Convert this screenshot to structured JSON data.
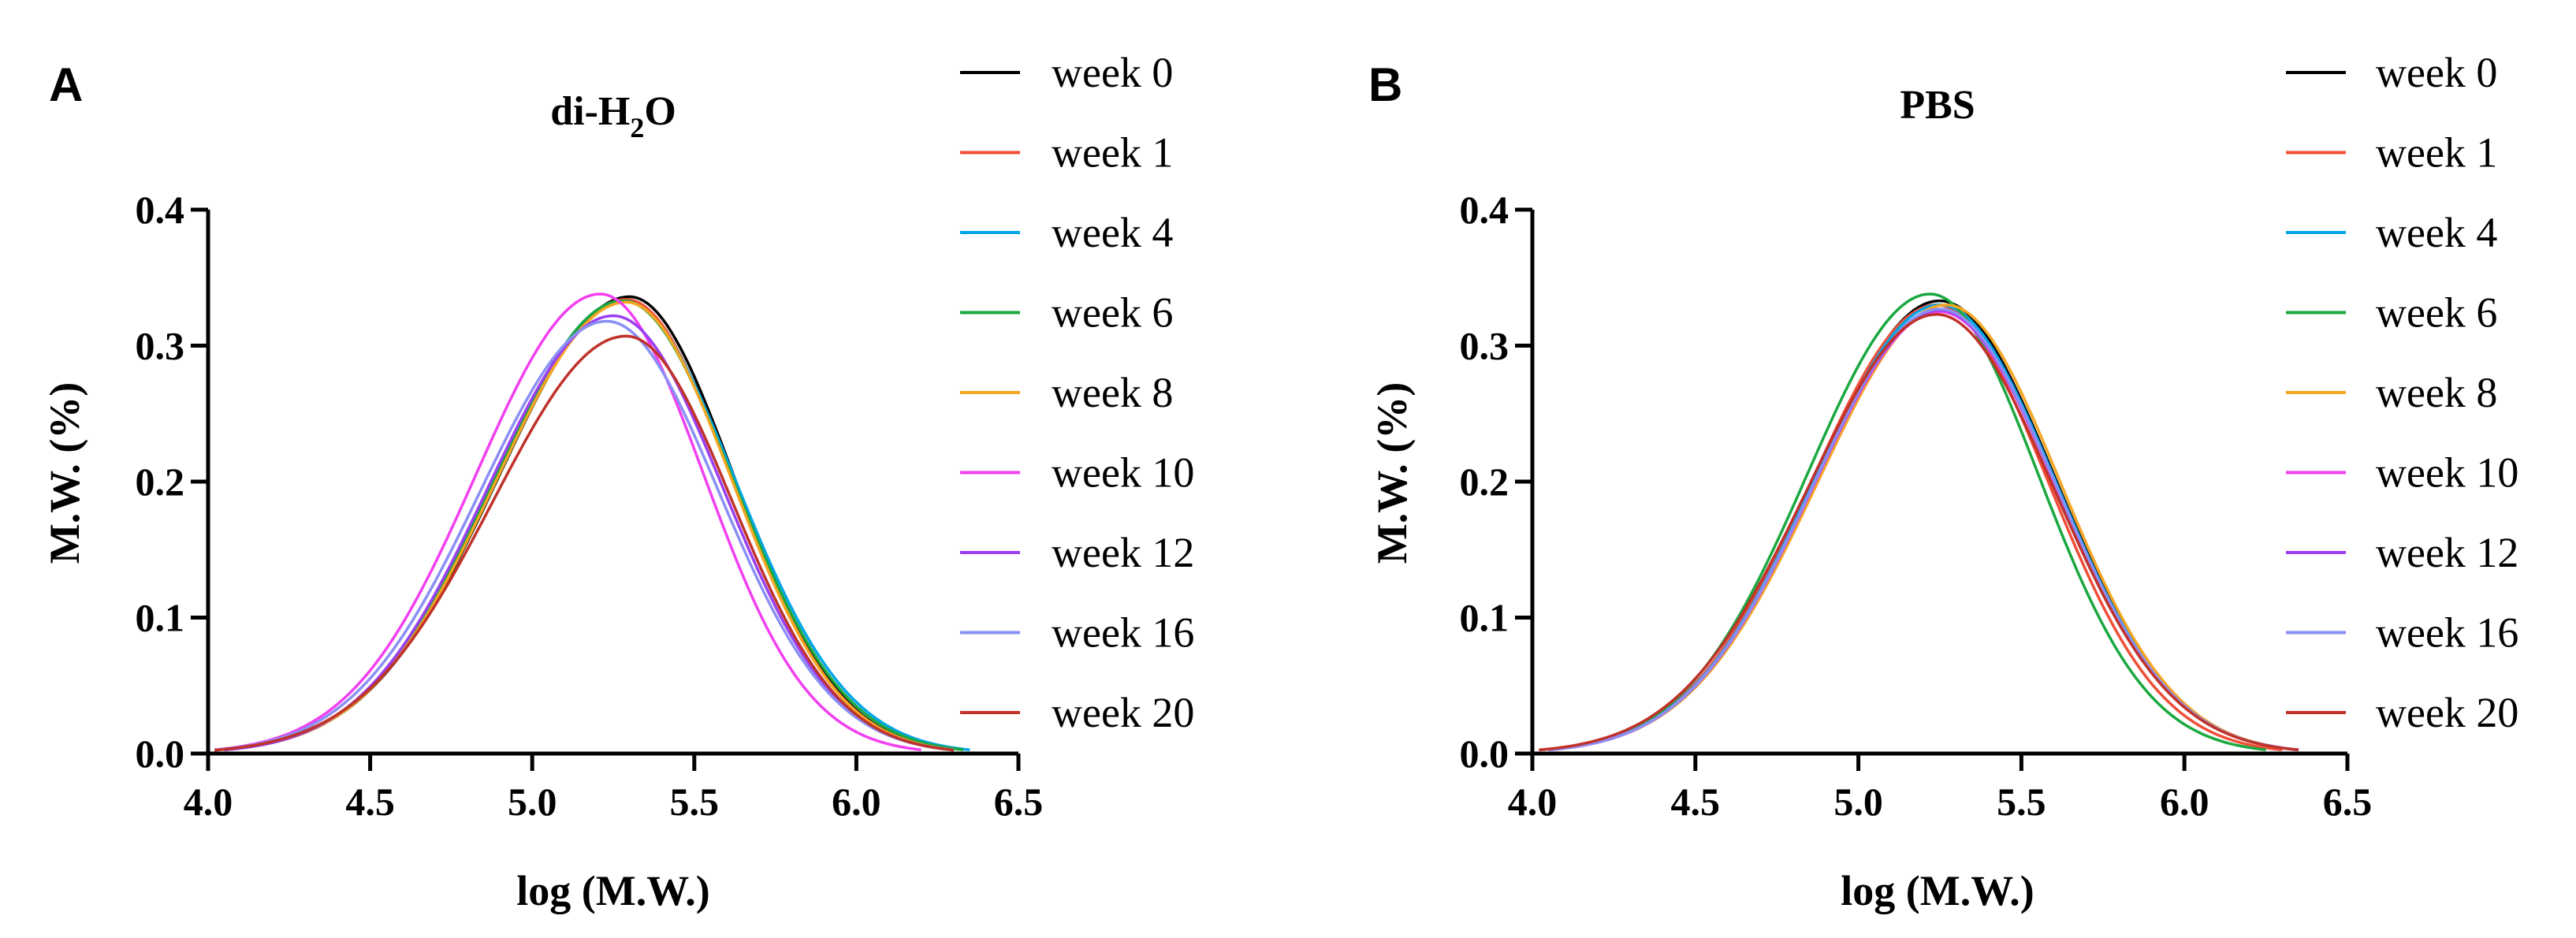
{
  "chart_data": [
    {
      "type": "line",
      "panel": "A",
      "title": "di-H2O",
      "title_parts": [
        "di-H",
        "2",
        "O"
      ],
      "xlabel": "log (M.W.)",
      "ylabel": "M.W. (%)",
      "xlim": [
        4.0,
        6.5
      ],
      "ylim": [
        0.0,
        0.4
      ],
      "xticks": [
        "4.0",
        "4.5",
        "5.0",
        "5.5",
        "6.0",
        "6.5"
      ],
      "yticks": [
        "0.0",
        "0.1",
        "0.2",
        "0.3",
        "0.4"
      ],
      "legend_position": "right",
      "series": [
        {
          "name": "week 0",
          "color": "#000000",
          "peak_x": 5.3,
          "peak_y": 0.336,
          "range": [
            4.05,
            6.3
          ]
        },
        {
          "name": "week 1",
          "color": "#f04e37",
          "peak_x": 5.29,
          "peak_y": 0.334,
          "range": [
            4.05,
            6.3
          ]
        },
        {
          "name": "week 4",
          "color": "#00a6e8",
          "peak_x": 5.28,
          "peak_y": 0.333,
          "range": [
            4.05,
            6.35
          ]
        },
        {
          "name": "week 6",
          "color": "#1aa83f",
          "peak_x": 5.28,
          "peak_y": 0.333,
          "range": [
            4.05,
            6.33
          ]
        },
        {
          "name": "week 8",
          "color": "#f5a623",
          "peak_x": 5.29,
          "peak_y": 0.332,
          "range": [
            4.05,
            6.3
          ]
        },
        {
          "name": "week 10",
          "color": "#f23ff0",
          "peak_x": 5.21,
          "peak_y": 0.338,
          "range": [
            4.02,
            6.2
          ]
        },
        {
          "name": "week 12",
          "color": "#9b3ff0",
          "peak_x": 5.25,
          "peak_y": 0.322,
          "range": [
            4.05,
            6.3
          ]
        },
        {
          "name": "week 16",
          "color": "#8a8ff5",
          "peak_x": 5.23,
          "peak_y": 0.318,
          "range": [
            4.02,
            6.3
          ]
        },
        {
          "name": "week 20",
          "color": "#c0322a",
          "peak_x": 5.29,
          "peak_y": 0.307,
          "range": [
            4.02,
            6.3
          ]
        }
      ]
    },
    {
      "type": "line",
      "panel": "B",
      "title": "PBS",
      "xlabel": "log (M.W.)",
      "ylabel": "M.W. (%)",
      "xlim": [
        4.0,
        6.5
      ],
      "ylim": [
        0.0,
        0.4
      ],
      "xticks": [
        "4.0",
        "4.5",
        "5.0",
        "5.5",
        "6.0",
        "6.5"
      ],
      "yticks": [
        "0.0",
        "0.1",
        "0.2",
        "0.3",
        "0.4"
      ],
      "legend_position": "right",
      "series": [
        {
          "name": "week 0",
          "color": "#000000",
          "peak_x": 5.25,
          "peak_y": 0.333,
          "range": [
            4.05,
            6.35
          ]
        },
        {
          "name": "week 1",
          "color": "#f04e37",
          "peak_x": 5.24,
          "peak_y": 0.33,
          "range": [
            4.05,
            6.3
          ]
        },
        {
          "name": "week 4",
          "color": "#00a6e8",
          "peak_x": 5.25,
          "peak_y": 0.33,
          "range": [
            4.05,
            6.35
          ]
        },
        {
          "name": "week 6",
          "color": "#1aa83f",
          "peak_x": 5.22,
          "peak_y": 0.338,
          "range": [
            4.05,
            6.25
          ]
        },
        {
          "name": "week 8",
          "color": "#f5a623",
          "peak_x": 5.27,
          "peak_y": 0.33,
          "range": [
            4.05,
            6.35
          ]
        },
        {
          "name": "week 10",
          "color": "#f23ff0",
          "peak_x": 5.25,
          "peak_y": 0.325,
          "range": [
            4.05,
            6.35
          ]
        },
        {
          "name": "week 12",
          "color": "#9b3ff0",
          "peak_x": 5.25,
          "peak_y": 0.326,
          "range": [
            4.05,
            6.35
          ]
        },
        {
          "name": "week 16",
          "color": "#8a8ff5",
          "peak_x": 5.25,
          "peak_y": 0.327,
          "range": [
            4.05,
            6.35
          ]
        },
        {
          "name": "week 20",
          "color": "#c0322a",
          "peak_x": 5.24,
          "peak_y": 0.323,
          "range": [
            4.02,
            6.35
          ]
        }
      ]
    }
  ]
}
